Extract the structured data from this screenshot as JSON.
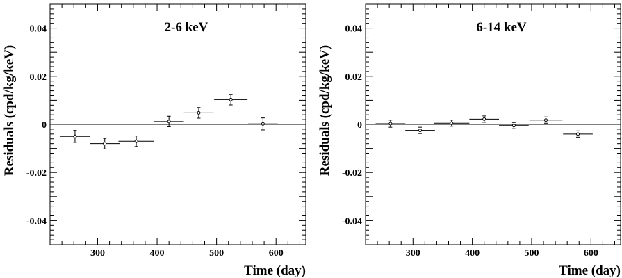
{
  "chart_data": [
    {
      "type": "scatter",
      "title": "2-6 keV",
      "xlabel": "Time (day)",
      "ylabel": "Residuals (cpd/kg/keV)",
      "xlim": [
        220,
        650
      ],
      "ylim": [
        -0.05,
        0.05
      ],
      "xticks": [
        300,
        400,
        500,
        600
      ],
      "xtick_labels": [
        "300",
        "400",
        "500",
        "600"
      ],
      "yticks": [
        -0.04,
        -0.02,
        0,
        0.02,
        0.04
      ],
      "ytick_labels": [
        "-0.04",
        "-0.02",
        "0",
        "0.02",
        "0.04"
      ],
      "zero_line": true,
      "grid": false,
      "points": [
        {
          "x": 262,
          "xerr": 25,
          "y": -0.005,
          "yerr": 0.0025
        },
        {
          "x": 312,
          "xerr": 25,
          "y": -0.008,
          "yerr": 0.0022
        },
        {
          "x": 365,
          "xerr": 30,
          "y": -0.007,
          "yerr": 0.0022
        },
        {
          "x": 420,
          "xerr": 25,
          "y": 0.0012,
          "yerr": 0.0022
        },
        {
          "x": 470,
          "xerr": 25,
          "y": 0.0048,
          "yerr": 0.0022
        },
        {
          "x": 524,
          "xerr": 28,
          "y": 0.0103,
          "yerr": 0.0022
        },
        {
          "x": 578,
          "xerr": 25,
          "y": 0.0002,
          "yerr": 0.0025
        }
      ]
    },
    {
      "type": "scatter",
      "title": "6-14 keV",
      "xlabel": "Time (day)",
      "ylabel": "Residuals (cpd/kg/keV)",
      "xlim": [
        220,
        650
      ],
      "ylim": [
        -0.05,
        0.05
      ],
      "xticks": [
        300,
        400,
        500,
        600
      ],
      "xtick_labels": [
        "300",
        "400",
        "500",
        "600"
      ],
      "yticks": [
        -0.04,
        -0.02,
        0,
        0.02,
        0.04
      ],
      "ytick_labels": [
        "-0.04",
        "-0.02",
        "0",
        "0.02",
        "0.04"
      ],
      "zero_line": true,
      "grid": false,
      "points": [
        {
          "x": 262,
          "xerr": 25,
          "y": 0.0003,
          "yerr": 0.0015
        },
        {
          "x": 312,
          "xerr": 25,
          "y": -0.0025,
          "yerr": 0.0013
        },
        {
          "x": 365,
          "xerr": 30,
          "y": 0.0005,
          "yerr": 0.0013
        },
        {
          "x": 420,
          "xerr": 25,
          "y": 0.0022,
          "yerr": 0.0013
        },
        {
          "x": 470,
          "xerr": 25,
          "y": -0.0005,
          "yerr": 0.0013
        },
        {
          "x": 524,
          "xerr": 28,
          "y": 0.0018,
          "yerr": 0.0013
        },
        {
          "x": 578,
          "xerr": 25,
          "y": -0.004,
          "yerr": 0.0013
        }
      ]
    }
  ]
}
